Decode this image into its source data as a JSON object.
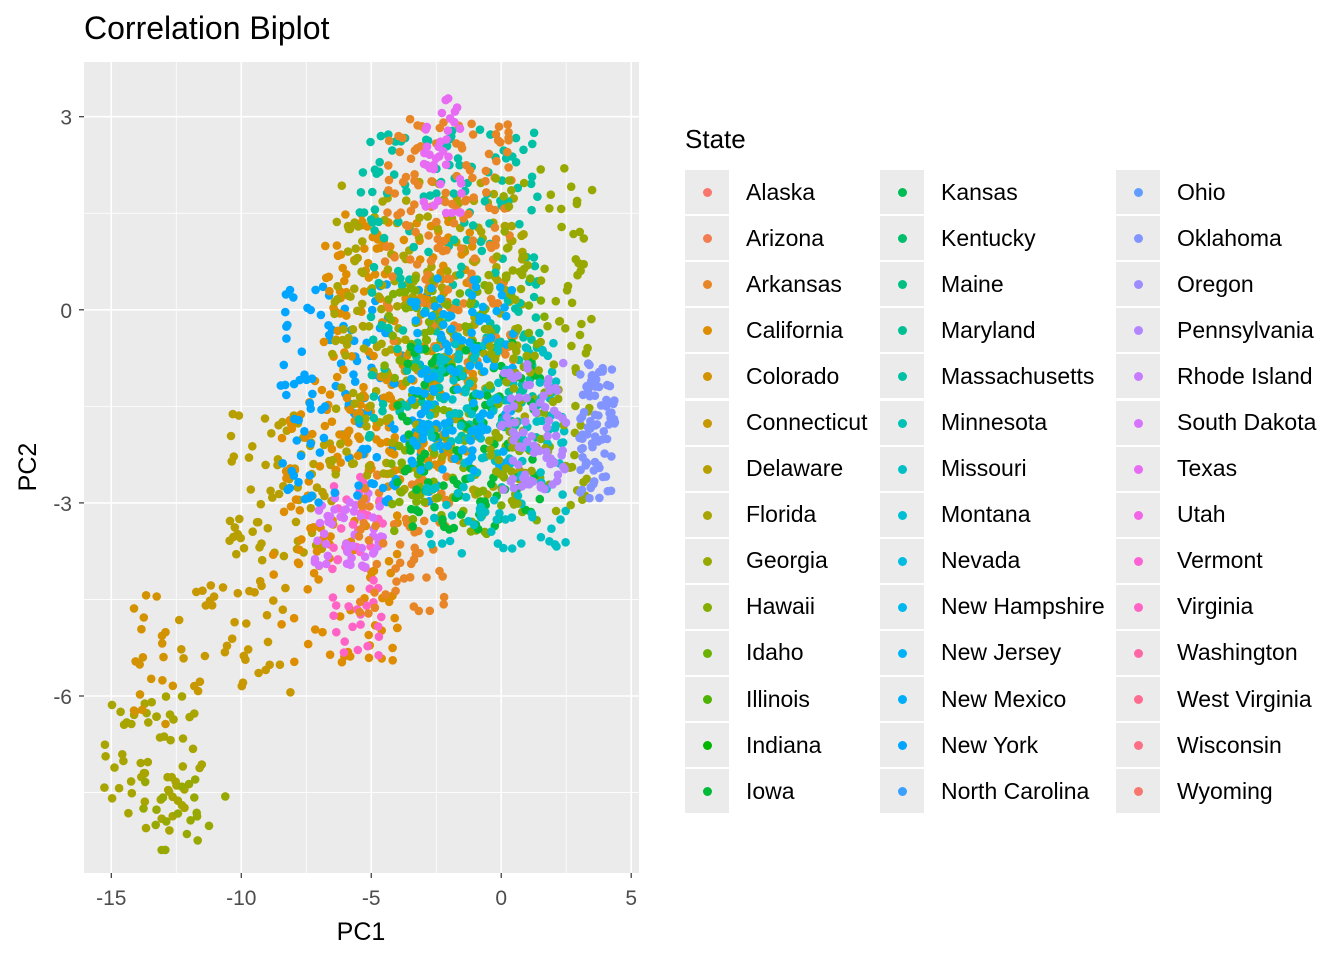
{
  "chart_data": {
    "type": "scatter",
    "title": "Correlation Biplot",
    "xlabel": "PC1",
    "ylabel": "PC2",
    "xlim": [
      -16.05,
      5.3
    ],
    "ylim": [
      -8.75,
      3.85
    ],
    "x_ticks": [
      -15,
      -10,
      -5,
      0,
      5
    ],
    "x_tick_labels": [
      "-15",
      "-10",
      "-5",
      "0",
      "5"
    ],
    "y_ticks": [
      3,
      0,
      -3,
      -6
    ],
    "y_tick_labels": [
      "3",
      "0",
      "-3",
      "-6"
    ],
    "grid": true,
    "legend_position": "right",
    "legend_title": "State",
    "series": [
      {
        "name": "Alaska",
        "color": "#F8766D"
      },
      {
        "name": "Arizona",
        "color": "#F17D51"
      },
      {
        "name": "Arkansas",
        "color": "#E88526"
      },
      {
        "name": "California",
        "color": "#DE8C00"
      },
      {
        "name": "Colorado",
        "color": "#D39200"
      },
      {
        "name": "Connecticut",
        "color": "#C79800"
      },
      {
        "name": "Delaware",
        "color": "#B79F00"
      },
      {
        "name": "Florida",
        "color": "#A8A400"
      },
      {
        "name": "Georgia",
        "color": "#97A900"
      },
      {
        "name": "Hawaii",
        "color": "#83AD00"
      },
      {
        "name": "Idaho",
        "color": "#6BB100"
      },
      {
        "name": "Illinois",
        "color": "#4CB400"
      },
      {
        "name": "Indiana",
        "color": "#00B700"
      },
      {
        "name": "Iowa",
        "color": "#00BA38"
      },
      {
        "name": "Kansas",
        "color": "#00BC55"
      },
      {
        "name": "Kentucky",
        "color": "#00BE6C"
      },
      {
        "name": "Maine",
        "color": "#00BF80"
      },
      {
        "name": "Maryland",
        "color": "#00C093"
      },
      {
        "name": "Massachusetts",
        "color": "#00C1A5"
      },
      {
        "name": "Minnesota",
        "color": "#00C1B5"
      },
      {
        "name": "Missouri",
        "color": "#00C0C5"
      },
      {
        "name": "Montana",
        "color": "#00BFD4"
      },
      {
        "name": "Nevada",
        "color": "#00BCE1"
      },
      {
        "name": "New Hampshire",
        "color": "#00B8EE"
      },
      {
        "name": "New Jersey",
        "color": "#00B3F9"
      },
      {
        "name": "New Mexico",
        "color": "#00ADFA"
      },
      {
        "name": "New York",
        "color": "#00A5FF"
      },
      {
        "name": "North Carolina",
        "color": "#3AA0FF"
      },
      {
        "name": "Ohio",
        "color": "#619CFF"
      },
      {
        "name": "Oklahoma",
        "color": "#8294FF"
      },
      {
        "name": "Oregon",
        "color": "#9D8CFF"
      },
      {
        "name": "Pennsylvania",
        "color": "#B385FF"
      },
      {
        "name": "Rhode Island",
        "color": "#C77CFF"
      },
      {
        "name": "South Dakota",
        "color": "#D774FD"
      },
      {
        "name": "Texas",
        "color": "#E76BF3"
      },
      {
        "name": "Utah",
        "color": "#F265E7"
      },
      {
        "name": "Vermont",
        "color": "#FC61D5"
      },
      {
        "name": "Virginia",
        "color": "#FF63C6"
      },
      {
        "name": "Washington",
        "color": "#FF67A4"
      },
      {
        "name": "West Virginia",
        "color": "#FF6C90"
      },
      {
        "name": "Wisconsin",
        "color": "#FD6F85"
      },
      {
        "name": "Wyoming",
        "color": "#F8766D"
      }
    ],
    "clusters": [
      {
        "series": "Florida",
        "x_range": [
          -15.3,
          -11.5
        ],
        "y_range": [
          -8.1,
          -6.0
        ],
        "n": 60
      },
      {
        "series": "Georgia",
        "x_range": [
          -14.2,
          -10.5
        ],
        "y_range": [
          -8.4,
          -7.2
        ],
        "n": 20
      },
      {
        "series": "Colorado",
        "x_range": [
          -14.3,
          -12.5
        ],
        "y_range": [
          -6.5,
          -4.4
        ],
        "n": 20
      },
      {
        "series": "Connecticut",
        "x_range": [
          -12.5,
          -8.0
        ],
        "y_range": [
          -6.0,
          -4.2
        ],
        "n": 40
      },
      {
        "series": "Delaware",
        "x_range": [
          -10.5,
          -6.5
        ],
        "y_range": [
          -3.9,
          -1.6
        ],
        "n": 70
      },
      {
        "series": "California",
        "x_range": [
          -8.8,
          -3.8
        ],
        "y_range": [
          -5.5,
          -1.0
        ],
        "n": 120
      },
      {
        "series": "Virginia",
        "x_range": [
          -6.5,
          -4.5
        ],
        "y_range": [
          -5.4,
          -2.5
        ],
        "n": 50
      },
      {
        "series": "South Dakota",
        "x_range": [
          -7.2,
          -4.5
        ],
        "y_range": [
          -4.0,
          -2.8
        ],
        "n": 50
      },
      {
        "series": "Arkansas",
        "x_range": [
          -5.5,
          -2.0
        ],
        "y_range": [
          -4.8,
          -2.5
        ],
        "n": 60
      },
      {
        "series": "New York",
        "x_range": [
          -8.5,
          -2.0
        ],
        "y_range": [
          -3.0,
          0.5
        ],
        "n": 150
      },
      {
        "series": "California",
        "x_range": [
          -7.0,
          -1.0
        ],
        "y_range": [
          -2.5,
          1.5
        ],
        "n": 200
      },
      {
        "series": "Florida",
        "x_range": [
          -6.5,
          1.0
        ],
        "y_range": [
          -3.0,
          2.0
        ],
        "n": 220
      },
      {
        "series": "Massachusetts",
        "x_range": [
          -5.5,
          1.5
        ],
        "y_range": [
          -2.0,
          2.8
        ],
        "n": 200
      },
      {
        "series": "Arkansas",
        "x_range": [
          -4.5,
          0.5
        ],
        "y_range": [
          -1.0,
          3.0
        ],
        "n": 150
      },
      {
        "series": "Texas",
        "x_range": [
          -3.0,
          -1.5
        ],
        "y_range": [
          1.5,
          3.3
        ],
        "n": 40
      },
      {
        "series": "Hawaii",
        "x_range": [
          -4.5,
          2.0
        ],
        "y_range": [
          -3.5,
          0.5
        ],
        "n": 150
      },
      {
        "series": "Iowa",
        "x_range": [
          -4.0,
          1.5
        ],
        "y_range": [
          -3.5,
          -0.5
        ],
        "n": 120
      },
      {
        "series": "Missouri",
        "x_range": [
          -3.0,
          2.5
        ],
        "y_range": [
          -3.8,
          -0.5
        ],
        "n": 150
      },
      {
        "series": "New Mexico",
        "x_range": [
          -3.5,
          0.5
        ],
        "y_range": [
          -2.5,
          0.5
        ],
        "n": 120
      },
      {
        "series": "Georgia",
        "x_range": [
          -0.5,
          3.5
        ],
        "y_range": [
          -3.2,
          2.2
        ],
        "n": 120
      },
      {
        "series": "Pennsylvania",
        "x_range": [
          0.0,
          2.5
        ],
        "y_range": [
          -2.8,
          -0.8
        ],
        "n": 80
      },
      {
        "series": "Oklahoma",
        "x_range": [
          3.0,
          4.4
        ],
        "y_range": [
          -3.0,
          -0.8
        ],
        "n": 80
      }
    ]
  }
}
